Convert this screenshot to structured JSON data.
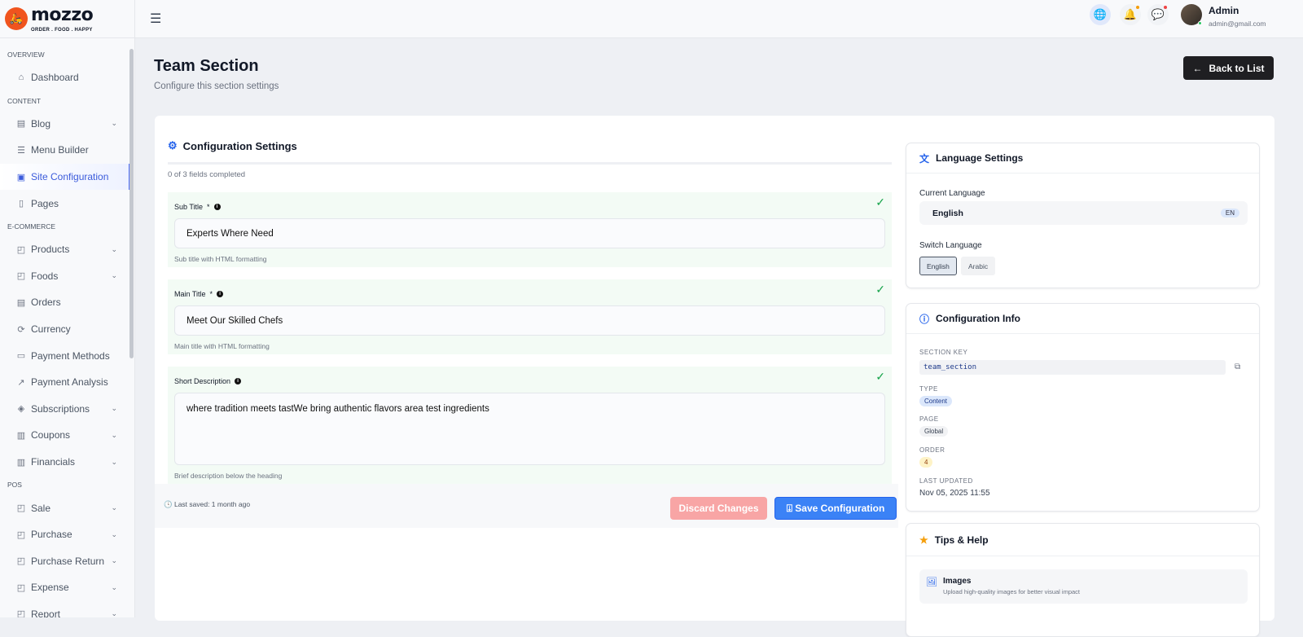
{
  "brand": {
    "name": "mozzo",
    "tagline": "ORDER . FOOD . HAPPY"
  },
  "sidebar": {
    "sections": [
      {
        "title": "OVERVIEW",
        "items": [
          {
            "label": "Dashboard",
            "icon": "home-icon"
          }
        ]
      },
      {
        "title": "CONTENT",
        "items": [
          {
            "label": "Blog",
            "icon": "newspaper-icon",
            "chevron": true
          },
          {
            "label": "Menu Builder",
            "icon": "menu-icon"
          },
          {
            "label": "Site Configuration",
            "icon": "form-icon",
            "active": true
          },
          {
            "label": "Pages",
            "icon": "file-icon"
          }
        ]
      },
      {
        "title": "E-COMMERCE",
        "items": [
          {
            "label": "Products",
            "icon": "bag-icon",
            "chevron": true
          },
          {
            "label": "Foods",
            "icon": "bag-icon",
            "chevron": true
          },
          {
            "label": "Orders",
            "icon": "list-icon"
          },
          {
            "label": "Currency",
            "icon": "currency-icon"
          },
          {
            "label": "Payment Methods",
            "icon": "card-icon"
          },
          {
            "label": "Payment Analysis",
            "icon": "chart-icon"
          },
          {
            "label": "Subscriptions",
            "icon": "box-icon",
            "chevron": true
          },
          {
            "label": "Coupons",
            "icon": "coupon-icon",
            "chevron": true
          },
          {
            "label": "Financials",
            "icon": "bank-icon",
            "chevron": true
          }
        ]
      },
      {
        "title": "POS",
        "items": [
          {
            "label": "Sale",
            "icon": "bag-icon",
            "chevron": true
          },
          {
            "label": "Purchase",
            "icon": "bag-icon",
            "chevron": true
          },
          {
            "label": "Purchase Return",
            "icon": "bag-icon",
            "chevron": true
          },
          {
            "label": "Expense",
            "icon": "bag-icon",
            "chevron": true
          },
          {
            "label": "Report",
            "icon": "bag-icon",
            "chevron": true
          }
        ]
      }
    ]
  },
  "header": {
    "user_name": "Admin",
    "user_email": "admin@gmail.com",
    "notif_dot": "#f59e0b",
    "msg_dot": "#ef4444"
  },
  "page": {
    "title": "Team Section",
    "subtitle": "Configure this section settings",
    "back_label": "Back to List"
  },
  "config": {
    "title": "Configuration Settings",
    "progress_text": "0 of 3 fields completed",
    "progress": 0,
    "fields": [
      {
        "label": "Sub Title",
        "required": "*",
        "value": "Experts Where Need",
        "help": "Sub title with HTML formatting"
      },
      {
        "label": "Main Title",
        "required": "*",
        "value": "Meet Our Skilled Chefs",
        "help": "Main title with HTML formatting"
      },
      {
        "label": "Short Description",
        "required": "",
        "value": "where tradition meets tastWe bring authentic flavors area test ingredients",
        "help": "Brief description below the heading"
      }
    ],
    "last_saved": "Last saved: 1 month ago",
    "discard_label": "Discard Changes",
    "save_label": "Save Configuration"
  },
  "language": {
    "title": "Language Settings",
    "current_label": "Current Language",
    "current": "English",
    "current_code": "EN",
    "switch_label": "Switch Language",
    "options": [
      "English",
      "Arabic"
    ]
  },
  "info": {
    "title": "Configuration Info",
    "section_key_label": "SECTION KEY",
    "section_key": "team_section",
    "type_label": "TYPE",
    "type": "Content",
    "page_label": "PAGE",
    "page": "Global",
    "order_label": "ORDER",
    "order": "4",
    "updated_label": "LAST UPDATED",
    "updated": "Nov 05, 2025 11:55"
  },
  "tips": {
    "title": "Tips & Help",
    "items": [
      {
        "title": "Images",
        "text": "Upload high-quality images for better visual impact"
      }
    ]
  }
}
